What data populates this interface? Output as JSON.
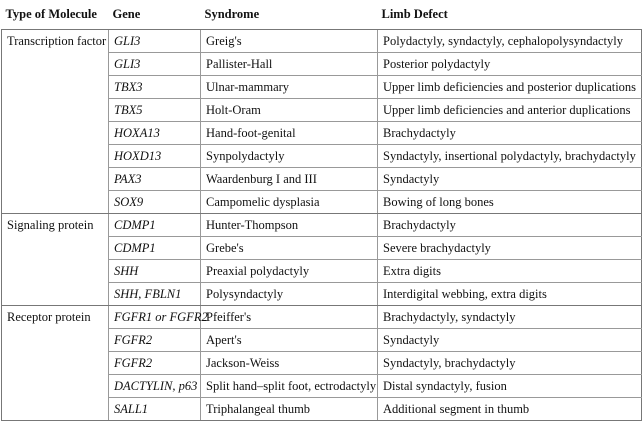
{
  "table": {
    "header": [
      "Type of Molecule",
      "Gene",
      "Syndrome",
      "Limb Defect"
    ],
    "groups": [
      {
        "type": "Transcription factor",
        "rows": [
          [
            "GLI3",
            "Greig's",
            "Polydactyly, syndactyly, cephalopolysyndactyly"
          ],
          [
            "GLI3",
            "Pallister-Hall",
            "Posterior polydactyly"
          ],
          [
            "TBX3",
            "Ulnar-mammary",
            "Upper limb deficiencies and posterior duplications"
          ],
          [
            "TBX5",
            "Holt-Oram",
            "Upper limb deficiencies and anterior duplications"
          ],
          [
            "HOXA13",
            "Hand-foot-genital",
            "Brachydactyly"
          ],
          [
            "HOXD13",
            "Synpolydactyly",
            "Syndactyly, insertional polydactyly, brachydactyly"
          ],
          [
            "PAX3",
            "Waardenburg I and III",
            "Syndactyly"
          ],
          [
            "SOX9",
            "Campomelic dysplasia",
            "Bowing of long bones"
          ]
        ]
      },
      {
        "type": "Signaling protein",
        "rows": [
          [
            "CDMP1",
            "Hunter-Thompson",
            "Brachydactyly"
          ],
          [
            "CDMP1",
            "Grebe's",
            "Severe brachydactyly"
          ],
          [
            "SHH",
            "Preaxial polydactyly",
            "Extra digits"
          ],
          [
            "SHH, FBLN1",
            "Polysyndactyly",
            "Interdigital webbing, extra digits"
          ]
        ]
      },
      {
        "type": "Receptor protein",
        "rows": [
          [
            "FGFR1 or FGFR2",
            "Pfeiffer's",
            "Brachydactyly, syndactyly"
          ],
          [
            "FGFR2",
            "Apert's",
            "Syndactyly"
          ],
          [
            "FGFR2",
            "Jackson-Weiss",
            "Syndactyly, brachydactyly"
          ],
          [
            "DACTYLIN, p63",
            "Split hand–split foot, ectrodactyly",
            "Distal syndactyly, fusion"
          ],
          [
            "SALL1",
            "Triphalangeal thumb",
            "Additional segment in thumb"
          ]
        ]
      }
    ]
  }
}
